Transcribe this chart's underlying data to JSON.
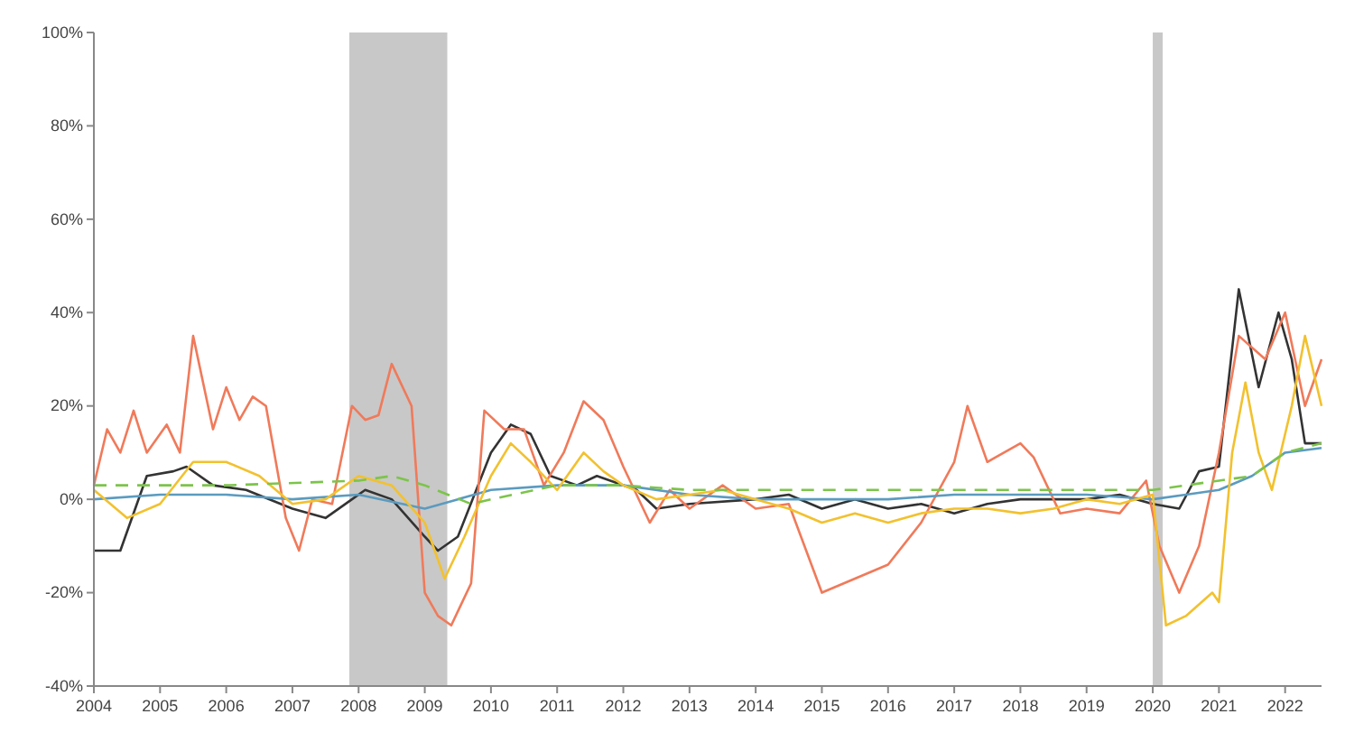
{
  "chart_data": {
    "type": "line",
    "xlim": [
      2004,
      2022.55
    ],
    "xticks": [
      2004,
      2005,
      2006,
      2007,
      2008,
      2009,
      2010,
      2011,
      2012,
      2013,
      2014,
      2015,
      2016,
      2017,
      2018,
      2019,
      2020,
      2021,
      2022
    ],
    "ylim": [
      -40,
      100
    ],
    "yticks": [
      {
        "value": -40,
        "label": "-40%"
      },
      {
        "value": -20,
        "label": "-20%"
      },
      {
        "value": 0,
        "label": "0%"
      },
      {
        "value": 20,
        "label": "20%"
      },
      {
        "value": 40,
        "label": "40%"
      },
      {
        "value": 60,
        "label": "60%"
      },
      {
        "value": 80,
        "label": "80%"
      },
      {
        "value": 100,
        "label": "100%"
      }
    ],
    "bands": [
      {
        "axis": "x",
        "from": 2007.86,
        "to": 2009.34,
        "color": "#c8c8c8"
      },
      {
        "axis": "x",
        "from": 2020.0,
        "to": 2020.15,
        "color": "#c8c8c8"
      }
    ],
    "series": [
      {
        "color": "#333333",
        "x": [
          2004,
          2004.4,
          2004.8,
          2005.2,
          2005.4,
          2005.8,
          2006.3,
          2007,
          2007.5,
          2007.9,
          2008.1,
          2008.5,
          2009,
          2009.2,
          2009.5,
          2010,
          2010.3,
          2010.6,
          2010.9,
          2011.3,
          2011.6,
          2012.2,
          2012.5,
          2013,
          2014,
          2014.5,
          2015,
          2015.5,
          2016,
          2016.5,
          2017,
          2017.5,
          2018,
          2019,
          2019.5,
          2020,
          2020.4,
          2020.7,
          2021,
          2021.3,
          2021.6,
          2021.9,
          2022.1,
          2022.3,
          2022.55
        ],
        "values": [
          -11,
          -11,
          5,
          6,
          7,
          3,
          2,
          -2,
          -4,
          0,
          2,
          0,
          -8,
          -11,
          -8,
          10,
          16,
          14,
          5,
          3,
          5,
          2,
          -2,
          -1,
          0,
          1,
          -2,
          0,
          -2,
          -1,
          -3,
          -1,
          0,
          0,
          1,
          -1,
          -2,
          6,
          7,
          45,
          24,
          40,
          30,
          12,
          12
        ]
      },
      {
        "color": "#f07a5a",
        "x": [
          2004,
          2004.2,
          2004.4,
          2004.6,
          2004.8,
          2005.1,
          2005.3,
          2005.5,
          2005.8,
          2006,
          2006.2,
          2006.4,
          2006.6,
          2006.9,
          2007.1,
          2007.3,
          2007.6,
          2007.9,
          2008.1,
          2008.3,
          2008.5,
          2008.8,
          2009,
          2009.2,
          2009.4,
          2009.7,
          2009.9,
          2010.2,
          2010.5,
          2010.8,
          2011.1,
          2011.4,
          2011.7,
          2012,
          2012.4,
          2012.7,
          2013,
          2013.5,
          2014,
          2014.5,
          2015,
          2015.5,
          2016,
          2016.5,
          2017,
          2017.2,
          2017.5,
          2018,
          2018.2,
          2018.6,
          2019,
          2019.5,
          2019.9,
          2020.1,
          2020.4,
          2020.7,
          2021,
          2021.3,
          2021.7,
          2022,
          2022.3,
          2022.55
        ],
        "values": [
          3,
          15,
          10,
          19,
          10,
          16,
          10,
          35,
          15,
          24,
          17,
          22,
          20,
          -4,
          -11,
          0,
          -1,
          20,
          17,
          18,
          29,
          20,
          -20,
          -25,
          -27,
          -18,
          19,
          15,
          15,
          3,
          10,
          21,
          17,
          7,
          -5,
          2,
          -2,
          3,
          -2,
          -1,
          -20,
          -17,
          -14,
          -5,
          8,
          20,
          8,
          12,
          9,
          -3,
          -2,
          -3,
          4,
          -10,
          -20,
          -10,
          10,
          35,
          30,
          40,
          20,
          30
        ]
      },
      {
        "color": "#5b9bbf",
        "x": [
          2004,
          2005,
          2006,
          2007,
          2008,
          2009,
          2009.5,
          2010,
          2011,
          2012,
          2013,
          2014,
          2015,
          2016,
          2017,
          2018,
          2019,
          2020,
          2020.5,
          2021,
          2021.5,
          2022,
          2022.55
        ],
        "values": [
          0,
          1,
          1,
          0,
          1,
          -2,
          0,
          2,
          3,
          3,
          1,
          0,
          0,
          0,
          1,
          1,
          1,
          0,
          1,
          2,
          5,
          10,
          11
        ]
      },
      {
        "color": "#f2c12e",
        "x": [
          2004,
          2004.5,
          2005,
          2005.5,
          2006,
          2006.5,
          2007,
          2007.5,
          2008,
          2008.5,
          2009,
          2009.3,
          2009.6,
          2010,
          2010.3,
          2010.6,
          2011,
          2011.4,
          2011.7,
          2012,
          2012.5,
          2013,
          2013.5,
          2014,
          2014.5,
          2015,
          2015.5,
          2016,
          2016.5,
          2017,
          2017.5,
          2018,
          2018.5,
          2019,
          2019.5,
          2020,
          2020.2,
          2020.5,
          2020.9,
          2021,
          2021.2,
          2021.4,
          2021.6,
          2021.8,
          2022.1,
          2022.3,
          2022.55
        ],
        "values": [
          2,
          -4,
          -1,
          8,
          8,
          5,
          -1,
          0,
          5,
          3,
          -5,
          -17,
          -8,
          5,
          12,
          8,
          2,
          10,
          6,
          3,
          0,
          1,
          2,
          0,
          -2,
          -5,
          -3,
          -5,
          -3,
          -2,
          -2,
          -3,
          -2,
          0,
          -1,
          1,
          -27,
          -25,
          -20,
          -22,
          10,
          25,
          10,
          2,
          20,
          35,
          20
        ]
      },
      {
        "color": "#7cc44a",
        "line_style": "dashed",
        "x": [
          2004,
          2006,
          2008,
          2008.5,
          2009,
          2009.7,
          2010,
          2011,
          2012,
          2013,
          2014,
          2015,
          2016,
          2017,
          2018,
          2019,
          2020,
          2020.5,
          2021,
          2021.5,
          2022,
          2022.55
        ],
        "values": [
          3,
          3,
          4,
          5,
          3,
          -1,
          0,
          3,
          3,
          2,
          2,
          2,
          2,
          2,
          2,
          2,
          2,
          3,
          4,
          5,
          10,
          12
        ]
      }
    ]
  }
}
